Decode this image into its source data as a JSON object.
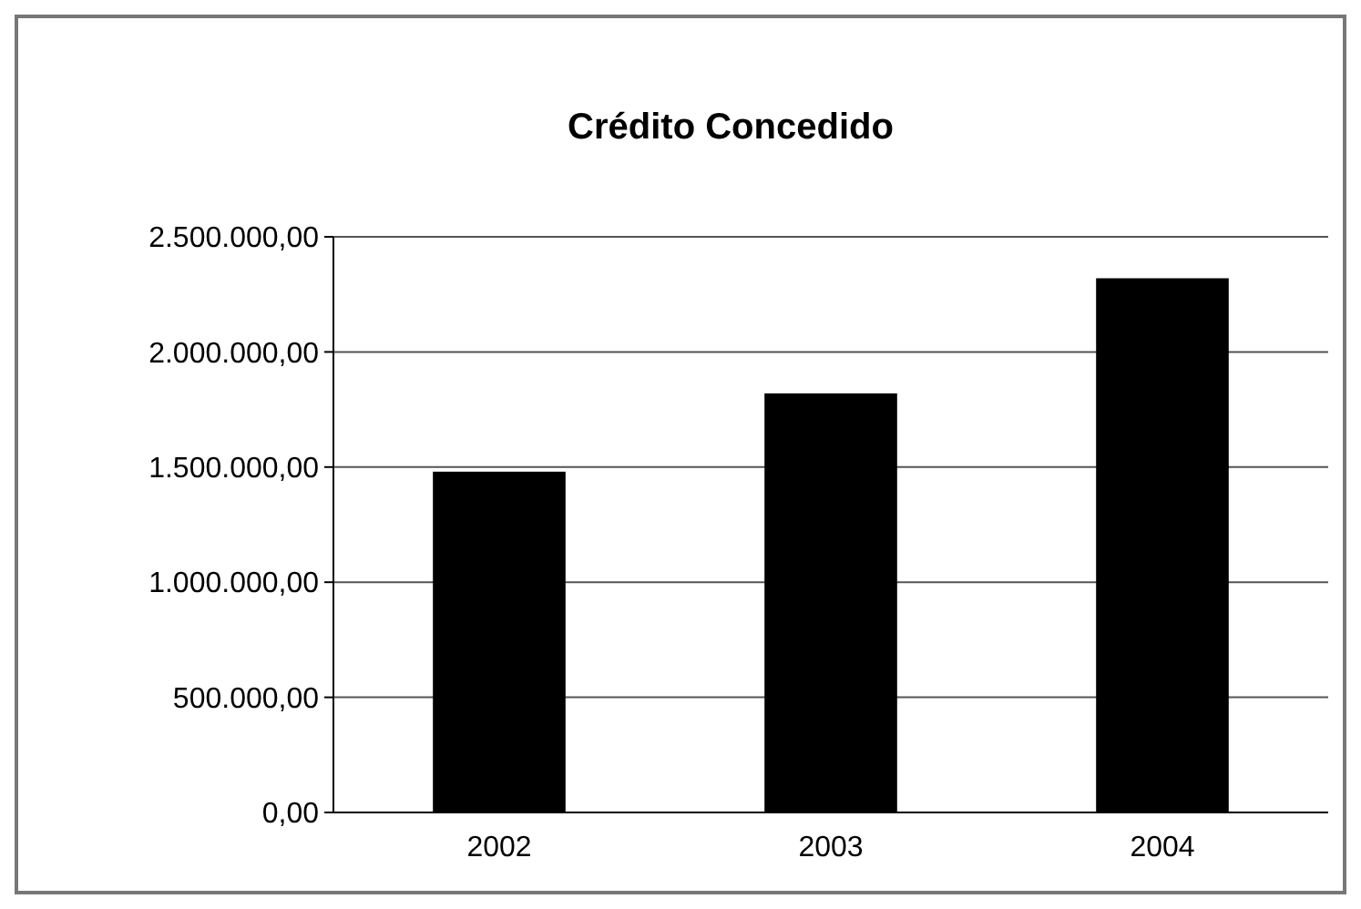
{
  "chart_data": {
    "type": "bar",
    "title": "Crédito Concedido",
    "categories": [
      "2002",
      "2003",
      "2004"
    ],
    "values": [
      1480000,
      1820000,
      2320000
    ],
    "color": "#000000",
    "ylim": [
      0,
      2500000
    ],
    "yticks": [
      {
        "value": 0,
        "label": "0,00"
      },
      {
        "value": 500000,
        "label": "500.000,00"
      },
      {
        "value": 1000000,
        "label": "1.000.000,00"
      },
      {
        "value": 1500000,
        "label": "1.500.000,00"
      },
      {
        "value": 2000000,
        "label": "2.000.000,00"
      },
      {
        "value": 2500000,
        "label": "2.500.000,00"
      }
    ],
    "grid": "y"
  }
}
